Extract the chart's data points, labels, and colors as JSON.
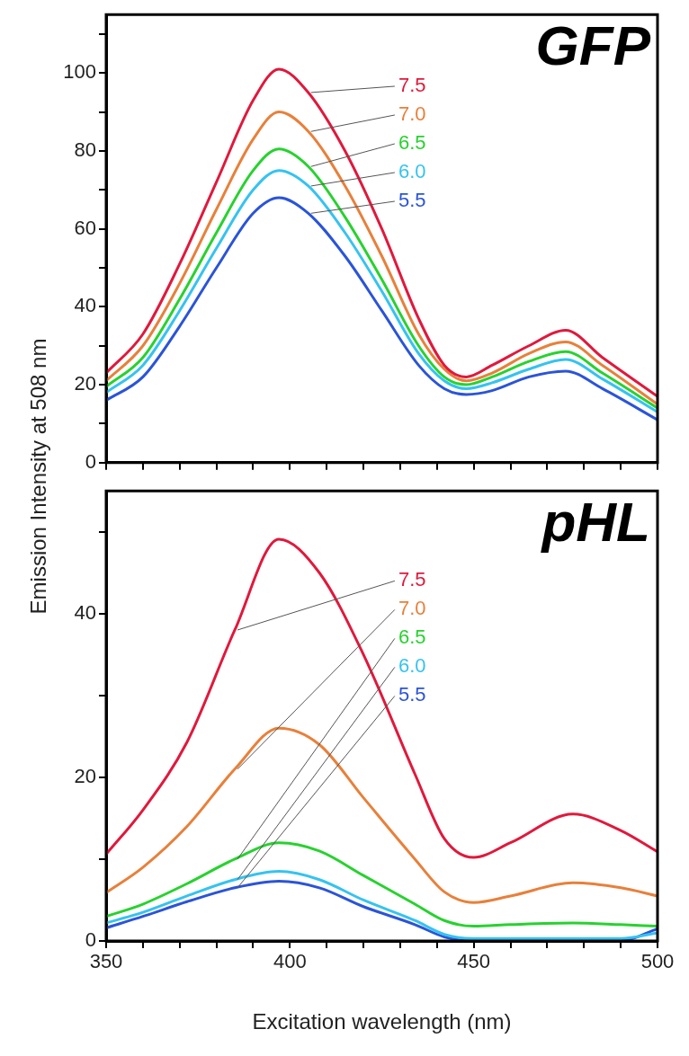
{
  "chart_data": [
    {
      "type": "line",
      "title": "GFP",
      "ylabel": "Emission Intensity at 508 nm",
      "x": [
        350,
        360,
        370,
        380,
        390,
        397,
        405,
        415,
        425,
        435,
        442,
        448,
        455,
        465,
        475,
        485,
        500
      ],
      "series": [
        {
          "name": "7.5",
          "color": "#e0193c",
          "values": [
            23,
            33,
            51,
            72,
            93,
            101,
            95,
            80,
            60,
            37,
            25,
            22,
            25,
            30,
            34,
            27,
            17
          ]
        },
        {
          "name": "7.0",
          "color": "#e8803a",
          "values": [
            21,
            30,
            46,
            65,
            83,
            90,
            85,
            71,
            53,
            33,
            24,
            21,
            23,
            28,
            31,
            25,
            15
          ]
        },
        {
          "name": "6.5",
          "color": "#27d22f",
          "values": [
            19.5,
            27,
            42,
            59,
            75,
            80.5,
            76,
            63,
            47,
            30,
            22,
            20,
            22,
            26,
            28.5,
            23,
            14
          ]
        },
        {
          "name": "6.0",
          "color": "#35c3f0",
          "values": [
            18,
            25,
            39,
            55,
            70,
            75,
            71,
            59,
            44,
            28,
            21,
            19,
            20.5,
            24,
            26.5,
            21.5,
            13
          ]
        },
        {
          "name": "5.5",
          "color": "#2a54d8",
          "values": [
            16,
            22,
            35,
            50,
            64,
            68,
            64,
            53,
            39,
            25,
            19,
            17.5,
            18.5,
            22,
            23.5,
            19,
            11
          ]
        }
      ],
      "xlim": [
        350,
        500
      ],
      "xticks": [
        350,
        {
          "value": 360,
          "label": null
        },
        {
          "value": 370,
          "label": null
        },
        {
          "value": 380,
          "label": null
        },
        {
          "value": 390,
          "label": null
        },
        400,
        {
          "value": 410,
          "label": null
        },
        {
          "value": 420,
          "label": null
        },
        {
          "value": 430,
          "label": null
        },
        {
          "value": 440,
          "label": null
        },
        450,
        {
          "value": 460,
          "label": null
        },
        {
          "value": 470,
          "label": null
        },
        {
          "value": 480,
          "label": null
        },
        {
          "value": 490,
          "label": null
        },
        500
      ],
      "ylim": [
        0,
        115
      ],
      "yticks": [
        0,
        {
          "value": 10,
          "label": null
        },
        20,
        {
          "value": 30,
          "label": null
        },
        40,
        {
          "value": 50,
          "label": null
        },
        60,
        {
          "value": 70,
          "label": null
        },
        80,
        {
          "value": 90,
          "label": null
        },
        100,
        {
          "value": 110,
          "label": null
        }
      ],
      "tick_labels": "y"
    },
    {
      "type": "line",
      "title": "pHL",
      "xlabel": "Excitation wavelength (nm)",
      "x": [
        350,
        360,
        372,
        385,
        397,
        408,
        420,
        434,
        442,
        450,
        460,
        477,
        490,
        500
      ],
      "series": [
        {
          "name": "7.5",
          "color": "#e0193c",
          "values": [
            10.6,
            16,
            24.3,
            38,
            49.1,
            45,
            35,
            20.4,
            12.5,
            10.2,
            12,
            15.5,
            13.5,
            10.9
          ]
        },
        {
          "name": "7.0",
          "color": "#e8803a",
          "values": [
            5.9,
            9,
            14,
            21,
            26,
            24,
            17.5,
            10,
            6,
            4.7,
            5.5,
            7.1,
            6.5,
            5.5
          ]
        },
        {
          "name": "6.5",
          "color": "#27d22f",
          "values": [
            3,
            4.5,
            7,
            10,
            12,
            11,
            8,
            4.5,
            2.5,
            1.8,
            2,
            2.2,
            2,
            1.8
          ]
        },
        {
          "name": "6.0",
          "color": "#35c3f0",
          "values": [
            2.2,
            3.5,
            5.5,
            7.5,
            8.5,
            7.5,
            5,
            2.5,
            0.8,
            0.3,
            0.3,
            0.3,
            0.3,
            1
          ]
        },
        {
          "name": "5.5",
          "color": "#2a54d8",
          "values": [
            1.6,
            3,
            4.8,
            6.5,
            7.3,
            6.5,
            4.2,
            2,
            0.5,
            0,
            0,
            0,
            0,
            1.5
          ]
        }
      ],
      "xlim": [
        350,
        500
      ],
      "xticks": [
        350,
        {
          "value": 360,
          "label": null
        },
        {
          "value": 370,
          "label": null
        },
        {
          "value": 380,
          "label": null
        },
        {
          "value": 390,
          "label": null
        },
        400,
        {
          "value": 410,
          "label": null
        },
        {
          "value": 420,
          "label": null
        },
        {
          "value": 430,
          "label": null
        },
        {
          "value": 440,
          "label": null
        },
        450,
        {
          "value": 460,
          "label": null
        },
        {
          "value": 470,
          "label": null
        },
        {
          "value": 480,
          "label": null
        },
        {
          "value": 490,
          "label": null
        },
        500
      ],
      "ylim": [
        0,
        55
      ],
      "yticks": [
        0,
        {
          "value": 10,
          "label": null
        },
        20,
        {
          "value": 30,
          "label": null
        },
        40,
        {
          "value": 50,
          "label": null
        }
      ]
    }
  ]
}
